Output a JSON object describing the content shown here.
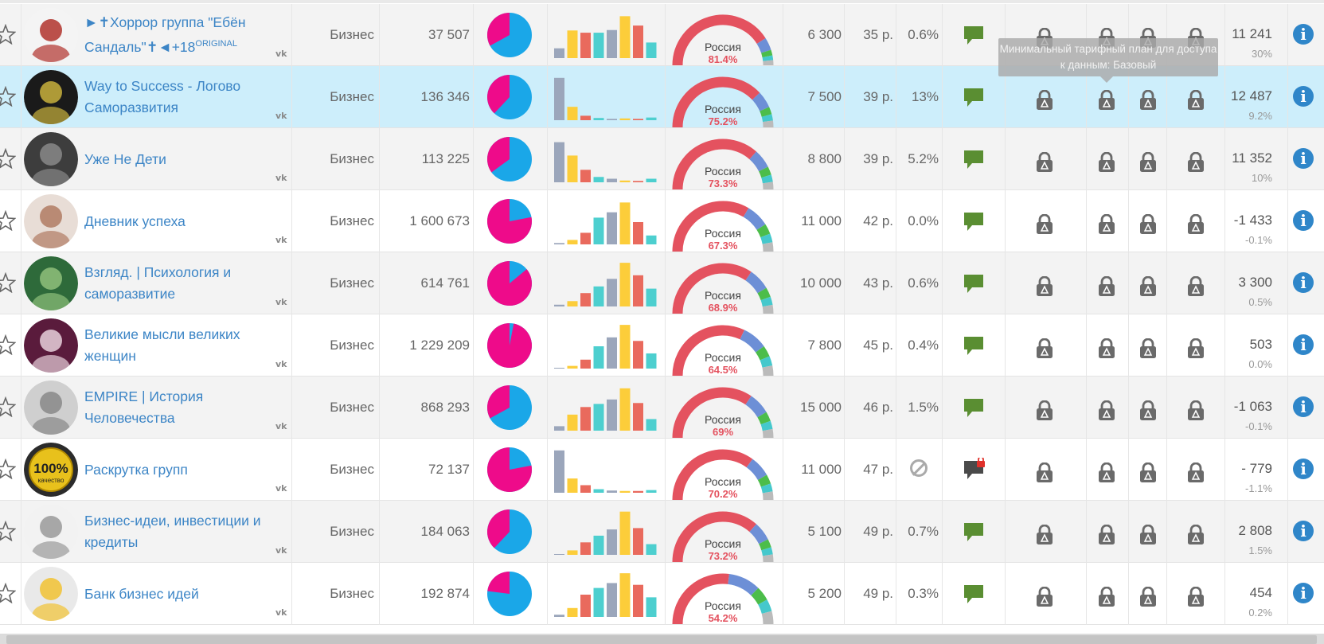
{
  "tooltip": "Минимальный тарифный план для доступа к данным: Базовый",
  "colors": {
    "blue": "#1aa7e8",
    "pink": "#ee0b8a",
    "bar_slate": "#9ba6bb",
    "bar_yellow": "#fccd3a",
    "bar_red": "#e96a5d",
    "bar_teal": "#4dcfcf",
    "gauge_red": "#e4525f",
    "gauge_blue": "#6d8fd6",
    "gauge_teal": "#45c8cc",
    "gauge_green": "#4cbd4a",
    "gauge_grey": "#bbbbbb",
    "chat_green": "#5a8e32"
  },
  "rows": [
    {
      "name": "►✝Хоррор группа \"Ебён Сандаль\"✝◄+18",
      "name_sup": "ORIGINAL",
      "category": "Бизнес",
      "subscribers": "37 507",
      "pie_pink": 0.33,
      "bars": [
        0.22,
        0.62,
        0.57,
        0.57,
        0.63,
        0.94,
        0.73,
        0.35
      ],
      "bar_pattern": "a",
      "country": "Россия",
      "country_pct": "81.4%",
      "gauge_red": 0.82,
      "reach": "6 300",
      "price": "35 р.",
      "engagement": "0.6%",
      "chat": "green",
      "total": "11 241",
      "total_pct": "30%",
      "avatar": "horror"
    },
    {
      "name": "Way to Success - Логово Саморазвития",
      "name_sup": "",
      "category": "Бизнес",
      "subscribers": "136 346",
      "pie_pink": 0.38,
      "bars": [
        0.95,
        0.3,
        0.1,
        0.05,
        0.03,
        0.04,
        0.03,
        0.06
      ],
      "bar_pattern": "b",
      "country": "Россия",
      "country_pct": "75.2%",
      "gauge_red": 0.76,
      "reach": "7 500",
      "price": "39 р.",
      "engagement": "13%",
      "chat": "green",
      "total": "12 487",
      "total_pct": "9.2%",
      "avatar": "dark"
    },
    {
      "name": "Уже Не Дети",
      "name_sup": "",
      "category": "Бизнес",
      "subscribers": "113 225",
      "pie_pink": 0.35,
      "bars": [
        0.9,
        0.6,
        0.28,
        0.12,
        0.08,
        0.04,
        0.03,
        0.08
      ],
      "bar_pattern": "b",
      "country": "Россия",
      "country_pct": "73.3%",
      "gauge_red": 0.73,
      "reach": "8 800",
      "price": "39 р.",
      "engagement": "5.2%",
      "chat": "green",
      "total": "11 352",
      "total_pct": "10%",
      "avatar": "bw"
    },
    {
      "name": "Дневник успеха",
      "name_sup": "",
      "category": "Бизнес",
      "subscribers": "1 600 673",
      "pie_pink": 0.78,
      "bars": [
        0.03,
        0.1,
        0.26,
        0.6,
        0.72,
        0.94,
        0.5,
        0.2
      ],
      "bar_pattern": "a",
      "country": "Россия",
      "country_pct": "67.3%",
      "gauge_red": 0.67,
      "reach": "11 000",
      "price": "42 р.",
      "engagement": "0.0%",
      "chat": "green",
      "total": "-1 433",
      "total_pct": "-0.1%",
      "avatar": "girl"
    },
    {
      "name": "Взгляд. | Психология и саморазвитие",
      "name_sup": "",
      "category": "Бизнес",
      "subscribers": "614 761",
      "pie_pink": 0.86,
      "bars": [
        0.04,
        0.12,
        0.3,
        0.45,
        0.62,
        0.98,
        0.7,
        0.4
      ],
      "bar_pattern": "a",
      "country": "Россия",
      "country_pct": "68.9%",
      "gauge_red": 0.69,
      "reach": "10 000",
      "price": "43 р.",
      "engagement": "0.6%",
      "chat": "green",
      "total": "3 300",
      "total_pct": "0.5%",
      "avatar": "eye"
    },
    {
      "name": "Великие мысли великих женщин",
      "name_sup": "",
      "category": "Бизнес",
      "subscribers": "1 229 209",
      "pie_pink": 0.97,
      "bars": [
        0.0,
        0.06,
        0.2,
        0.5,
        0.7,
        0.98,
        0.62,
        0.34
      ],
      "bar_pattern": "a",
      "country": "Россия",
      "country_pct": "64.5%",
      "gauge_red": 0.64,
      "reach": "7 800",
      "price": "45 р.",
      "engagement": "0.4%",
      "chat": "green",
      "total": "503",
      "total_pct": "0.0%",
      "avatar": "text"
    },
    {
      "name": "EMPIRE | История Человечества",
      "name_sup": "",
      "category": "Бизнес",
      "subscribers": "868 293",
      "pie_pink": 0.33,
      "bars": [
        0.1,
        0.36,
        0.53,
        0.6,
        0.7,
        0.95,
        0.62,
        0.26
      ],
      "bar_pattern": "a",
      "country": "Россия",
      "country_pct": "69%",
      "gauge_red": 0.69,
      "reach": "15 000",
      "price": "46 р.",
      "engagement": "1.5%",
      "chat": "green",
      "total": "-1 063",
      "total_pct": "-0.1%",
      "avatar": "einstein"
    },
    {
      "name": "Раскрутка групп",
      "name_sup": "",
      "category": "Бизнес",
      "subscribers": "72 137",
      "pie_pink": 0.78,
      "bars": [
        0.95,
        0.32,
        0.17,
        0.08,
        0.05,
        0.04,
        0.04,
        0.06
      ],
      "bar_pattern": "b",
      "country": "Россия",
      "country_pct": "70.2%",
      "gauge_red": 0.7,
      "reach": "11 000",
      "price": "47 р.",
      "engagement": "",
      "engagement_blocked": true,
      "chat": "locked",
      "total": "- 779",
      "total_pct": "-1.1%",
      "avatar": "badge",
      "avatar_badge": "100%",
      "avatar_badge_sub": "качество"
    },
    {
      "name": "Бизнес-идеи, инвестиции и кредиты",
      "name_sup": "",
      "category": "Бизнес",
      "subscribers": "184 063",
      "pie_pink": 0.38,
      "bars": [
        0.0,
        0.1,
        0.28,
        0.43,
        0.57,
        0.97,
        0.6,
        0.24
      ],
      "bar_pattern": "a",
      "country": "Россия",
      "country_pct": "73.2%",
      "gauge_red": 0.73,
      "reach": "5 100",
      "price": "49 р.",
      "engagement": "0.7%",
      "chat": "green",
      "total": "2 808",
      "total_pct": "1.5%",
      "avatar": "bear"
    },
    {
      "name": "Банк бизнес идей",
      "name_sup": "",
      "category": "Бизнес",
      "subscribers": "192 874",
      "pie_pink": 0.23,
      "bars": [
        0.05,
        0.2,
        0.5,
        0.65,
        0.76,
        0.98,
        0.72,
        0.44
      ],
      "bar_pattern": "a",
      "country": "Россия",
      "country_pct": "54.2%",
      "gauge_red": 0.54,
      "reach": "5 200",
      "price": "49 р.",
      "engagement": "0.3%",
      "chat": "green",
      "total": "454",
      "total_pct": "0.2%",
      "avatar": "bulb"
    }
  ]
}
